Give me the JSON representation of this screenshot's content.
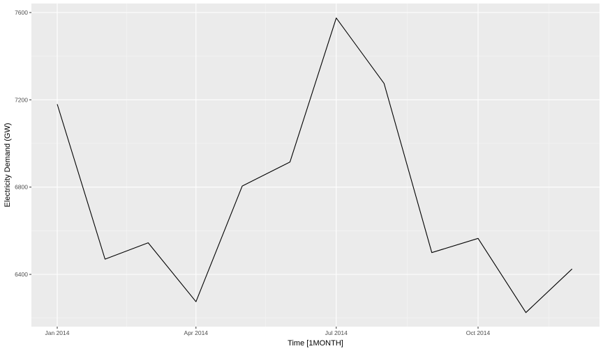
{
  "colors": {
    "panel_background": "#ebebeb",
    "grid_major": "#ffffff",
    "grid_minor": "#f5f5f5",
    "line": "#000000",
    "tick_label": "#4d4d4d"
  },
  "chart_data": {
    "type": "line",
    "xlabel": "Time [1MONTH]",
    "ylabel": "Electricity Demand (GW)",
    "x_ticks": [
      "Jan 2014",
      "Apr 2014",
      "Jul 2014",
      "Oct 2014"
    ],
    "y_ticks": [
      6400,
      6800,
      7200,
      7600
    ],
    "ylim": [
      6170,
      7640
    ],
    "grid": true,
    "legend": "none",
    "x": [
      "2014-01",
      "2014-02",
      "2014-03",
      "2014-04",
      "2014-05",
      "2014-06",
      "2014-07",
      "2014-08",
      "2014-09",
      "2014-10",
      "2014-11",
      "2014-12"
    ],
    "values": [
      7180,
      6470,
      6545,
      6275,
      6805,
      6915,
      7575,
      7275,
      6500,
      6565,
      6225,
      6425
    ]
  }
}
